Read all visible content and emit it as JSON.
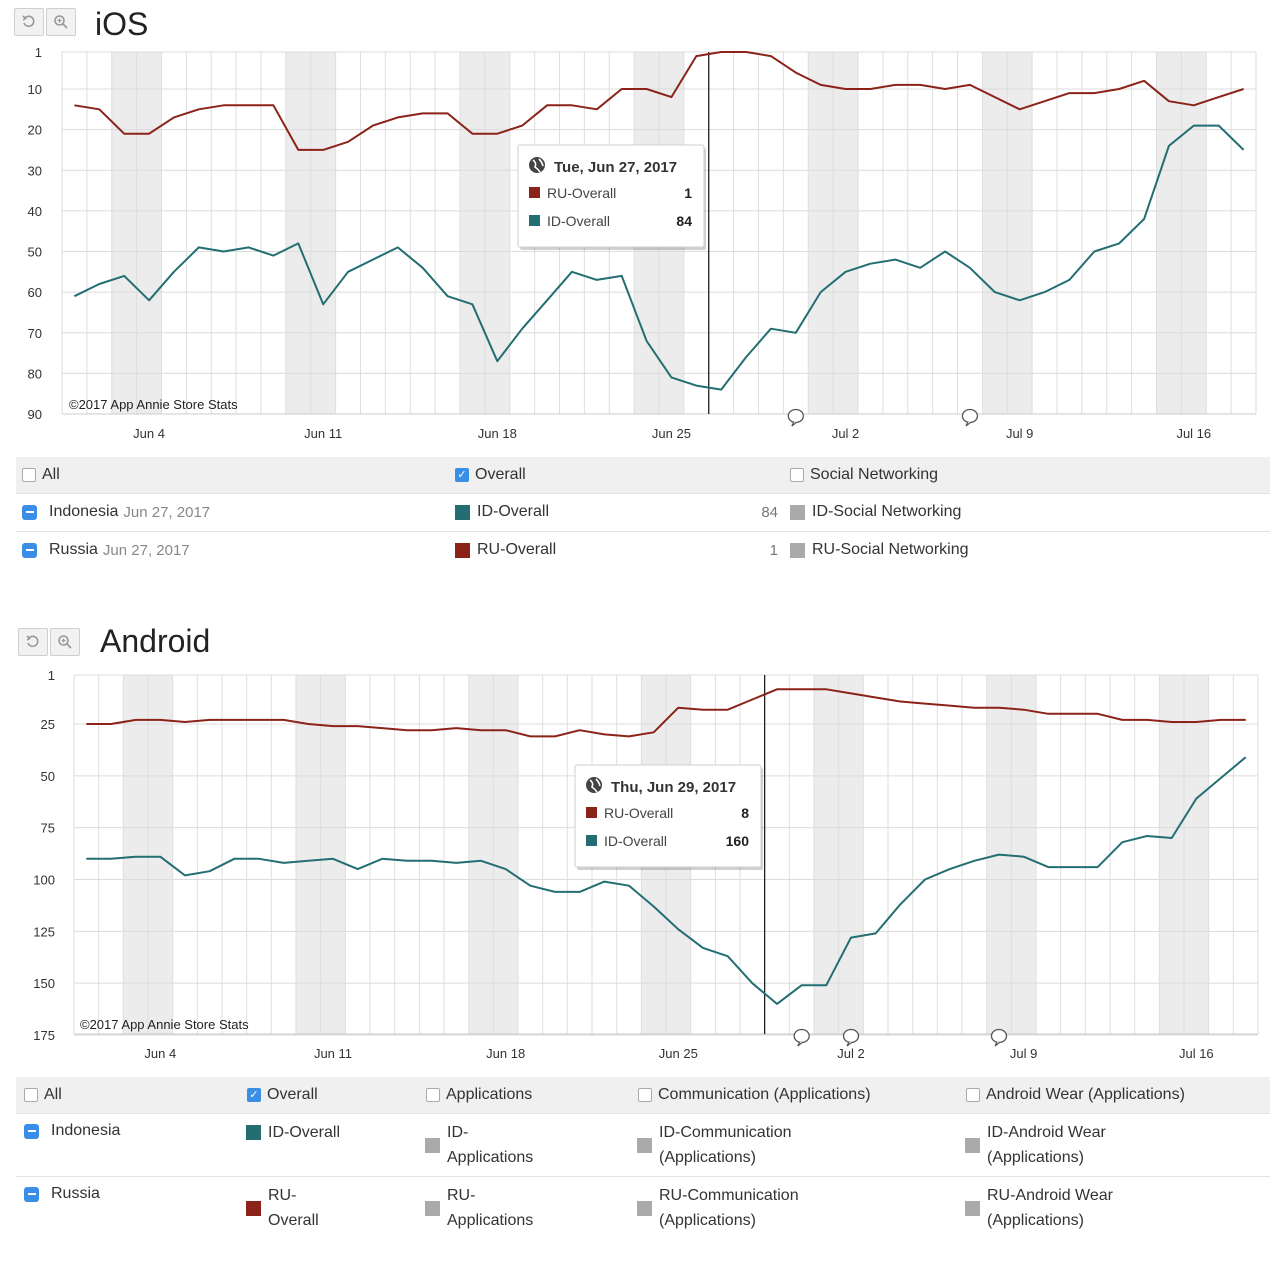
{
  "colors": {
    "ru": "#8b2318",
    "id": "#236e73",
    "gray": "#aaaaaa",
    "accent": "#3a8ee6"
  },
  "ios": {
    "title": "iOS",
    "copyright": "©2017 App Annie Store Stats",
    "tooltip": {
      "date": "Tue, Jun 27, 2017",
      "rows": [
        {
          "label": "RU-Overall",
          "value": "1"
        },
        {
          "label": "ID-Overall",
          "value": "84"
        }
      ]
    },
    "legend": {
      "header": {
        "all": "All",
        "overall": "Overall",
        "social": "Social Networking"
      },
      "rows": [
        {
          "country": "Indonesia",
          "date": "Jun 27, 2017",
          "overall": "ID-Overall",
          "value": "84",
          "social": "ID-Social Networking"
        },
        {
          "country": "Russia",
          "date": "Jun 27, 2017",
          "overall": "RU-Overall",
          "value": "1",
          "social": "RU-Social Networking"
        }
      ]
    }
  },
  "android": {
    "title": "Android",
    "copyright": "©2017 App Annie Store Stats",
    "tooltip": {
      "date": "Thu, Jun 29, 2017",
      "rows": [
        {
          "label": "RU-Overall",
          "value": "8"
        },
        {
          "label": "ID-Overall",
          "value": "160"
        }
      ]
    },
    "legend": {
      "header": {
        "all": "All",
        "overall": "Overall",
        "applications": "Applications",
        "communication": "Communication (Applications)",
        "wear": "Android Wear (Applications)"
      },
      "rows": [
        {
          "country": "Indonesia",
          "overall": "ID-Overall",
          "applications_1": "ID-",
          "applications_2": "Applications",
          "communication_1": "ID-Communication",
          "communication_2": "(Applications)",
          "wear_1": "ID-Android Wear",
          "wear_2": "(Applications)"
        },
        {
          "country": "Russia",
          "overall_1": "RU-",
          "overall_2": "Overall",
          "applications_1": "RU-",
          "applications_2": "Applications",
          "communication_1": "RU-Communication",
          "communication_2": "(Applications)",
          "wear_1": "RU-Android Wear",
          "wear_2": "(Applications)"
        }
      ]
    }
  },
  "chart_data": [
    {
      "type": "line",
      "title": "iOS",
      "x_start": "2017-06-01",
      "x": [
        "Jun 1",
        "Jun 2",
        "Jun 3",
        "Jun 4",
        "Jun 5",
        "Jun 6",
        "Jun 7",
        "Jun 8",
        "Jun 9",
        "Jun 10",
        "Jun 11",
        "Jun 12",
        "Jun 13",
        "Jun 14",
        "Jun 15",
        "Jun 16",
        "Jun 17",
        "Jun 18",
        "Jun 19",
        "Jun 20",
        "Jun 21",
        "Jun 22",
        "Jun 23",
        "Jun 24",
        "Jun 25",
        "Jun 26",
        "Jun 27",
        "Jun 28",
        "Jun 29",
        "Jun 30",
        "Jul 1",
        "Jul 2",
        "Jul 3",
        "Jul 4",
        "Jul 5",
        "Jul 6",
        "Jul 7",
        "Jul 8",
        "Jul 9",
        "Jul 10",
        "Jul 11",
        "Jul 12",
        "Jul 13",
        "Jul 14",
        "Jul 15",
        "Jul 16",
        "Jul 17",
        "Jul 18"
      ],
      "xticks": [
        "Jun 4",
        "Jun 11",
        "Jun 18",
        "Jun 25",
        "Jul 2",
        "Jul 9",
        "Jul 16"
      ],
      "yticks": [
        1,
        10,
        20,
        30,
        40,
        50,
        60,
        70,
        80,
        90
      ],
      "ylim": [
        1,
        90
      ],
      "y_reversed": true,
      "series": [
        {
          "name": "RU-Overall",
          "color": "#8b2318",
          "values": [
            14,
            15,
            21,
            21,
            17,
            15,
            14,
            14,
            14,
            25,
            25,
            23,
            19,
            17,
            16,
            16,
            21,
            21,
            19,
            14,
            14,
            15,
            10,
            10,
            12,
            2,
            1,
            1,
            2,
            6,
            9,
            10,
            10,
            9,
            9,
            10,
            9,
            12,
            15,
            13,
            11,
            11,
            10,
            8,
            13,
            14,
            12,
            10
          ]
        },
        {
          "name": "ID-Overall",
          "color": "#236e73",
          "values": [
            61,
            58,
            56,
            62,
            55,
            49,
            50,
            49,
            51,
            48,
            63,
            55,
            52,
            49,
            54,
            61,
            63,
            77,
            69,
            62,
            55,
            57,
            56,
            72,
            81,
            83,
            84,
            76,
            69,
            70,
            60,
            55,
            53,
            52,
            54,
            50,
            54,
            60,
            62,
            60,
            57,
            50,
            48,
            42,
            24,
            19,
            19,
            25
          ]
        }
      ]
    },
    {
      "type": "line",
      "title": "Android",
      "x_start": "2017-06-01",
      "x": [
        "Jun 1",
        "Jun 2",
        "Jun 3",
        "Jun 4",
        "Jun 5",
        "Jun 6",
        "Jun 7",
        "Jun 8",
        "Jun 9",
        "Jun 10",
        "Jun 11",
        "Jun 12",
        "Jun 13",
        "Jun 14",
        "Jun 15",
        "Jun 16",
        "Jun 17",
        "Jun 18",
        "Jun 19",
        "Jun 20",
        "Jun 21",
        "Jun 22",
        "Jun 23",
        "Jun 24",
        "Jun 25",
        "Jun 26",
        "Jun 27",
        "Jun 28",
        "Jun 29",
        "Jun 30",
        "Jul 1",
        "Jul 2",
        "Jul 3",
        "Jul 4",
        "Jul 5",
        "Jul 6",
        "Jul 7",
        "Jul 8",
        "Jul 9",
        "Jul 10",
        "Jul 11",
        "Jul 12",
        "Jul 13",
        "Jul 14",
        "Jul 15",
        "Jul 16",
        "Jul 17",
        "Jul 18"
      ],
      "xticks": [
        "Jun 4",
        "Jun 11",
        "Jun 18",
        "Jun 25",
        "Jul 2",
        "Jul 9",
        "Jul 16"
      ],
      "yticks": [
        1,
        25,
        50,
        75,
        100,
        125,
        150,
        175
      ],
      "ylim": [
        1,
        175
      ],
      "y_reversed": true,
      "series": [
        {
          "name": "RU-Overall",
          "color": "#8b2318",
          "values": [
            25,
            25,
            23,
            23,
            24,
            23,
            23,
            23,
            23,
            25,
            26,
            26,
            27,
            28,
            28,
            27,
            28,
            28,
            31,
            31,
            28,
            30,
            31,
            29,
            17,
            18,
            18,
            13,
            8,
            8,
            8,
            10,
            12,
            14,
            15,
            16,
            17,
            17,
            18,
            20,
            20,
            20,
            23,
            23,
            24,
            24,
            23,
            23
          ]
        },
        {
          "name": "ID-Overall",
          "color": "#236e73",
          "values": [
            90,
            90,
            89,
            89,
            98,
            96,
            90,
            90,
            92,
            91,
            90,
            95,
            90,
            91,
            91,
            92,
            91,
            95,
            103,
            106,
            106,
            101,
            103,
            113,
            124,
            133,
            137,
            150,
            160,
            151,
            151,
            128,
            126,
            112,
            100,
            95,
            91,
            88,
            89,
            94,
            94,
            94,
            82,
            79,
            80,
            61,
            51,
            41
          ]
        }
      ]
    }
  ]
}
